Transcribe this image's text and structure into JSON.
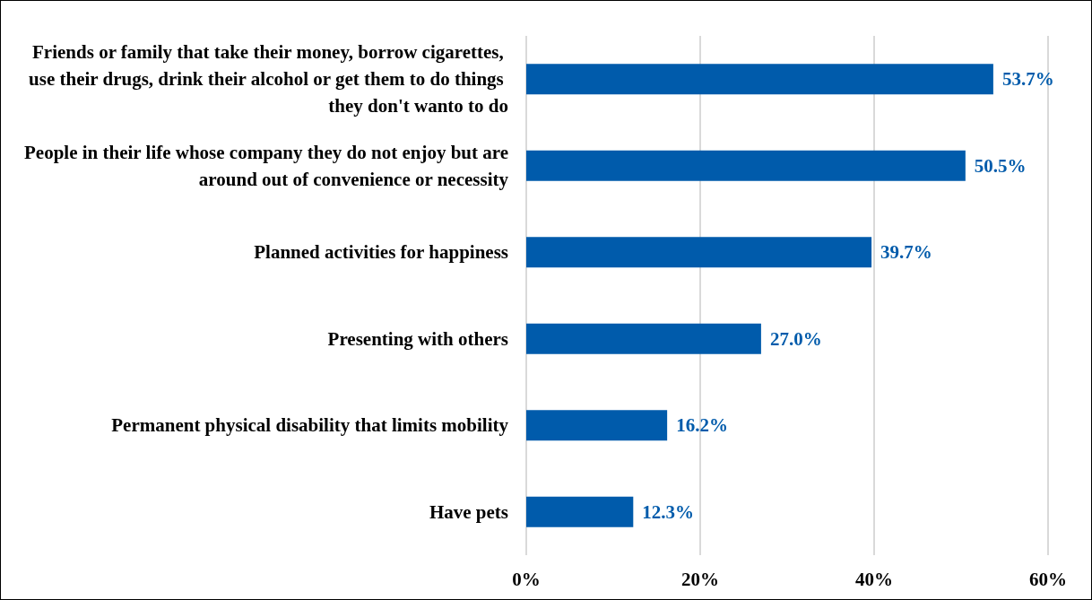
{
  "chart_data": {
    "type": "bar",
    "orientation": "horizontal",
    "categories": [
      "Friends or family that take their money, borrow cigarettes, use their drugs, drink their alcohol or get them to do things they don't wanto to do",
      "People in their life whose company they do not enjoy but are around out of convenience or necessity",
      "Planned activities for happiness",
      "Presenting with others",
      "Permanent physical disability that limits mobility",
      "Have pets"
    ],
    "values": [
      53.7,
      50.5,
      39.7,
      27.0,
      16.2,
      12.3
    ],
    "value_labels": [
      "53.7%",
      "50.5%",
      "39.7%",
      "27.0%",
      "16.2%",
      "12.3%"
    ],
    "color": "#005bab",
    "xlim": [
      0,
      60
    ],
    "xticks": [
      {
        "value": 0,
        "label": "0%"
      },
      {
        "value": 20,
        "label": "20%"
      },
      {
        "value": 40,
        "label": "40%"
      },
      {
        "value": 60,
        "label": "60%"
      }
    ],
    "grid": "x"
  }
}
